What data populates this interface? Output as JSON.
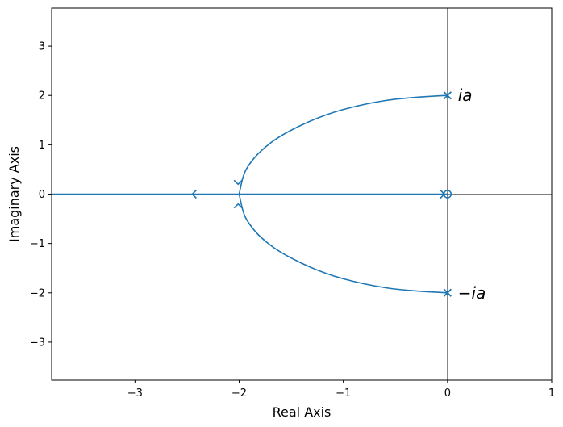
{
  "chart_data": {
    "type": "line",
    "title": "",
    "xlabel": "Real Axis",
    "ylabel": "Imaginary Axis",
    "xlim": [
      -3.8,
      1
    ],
    "ylim": [
      -3.77,
      3.77
    ],
    "x_ticks": [
      -3,
      -2,
      -1,
      0,
      1
    ],
    "x_tick_labels": [
      "−3",
      "−2",
      "−1",
      "0",
      "1"
    ],
    "y_ticks": [
      -3,
      -2,
      -1,
      0,
      1,
      2,
      3
    ],
    "y_tick_labels": [
      "−3",
      "−2",
      "−1",
      "0",
      "1",
      "2",
      "3"
    ],
    "grid": false,
    "line_color": "#1f77b4",
    "reference_lines": {
      "x": 0,
      "y": 0
    },
    "poles": [
      {
        "x": 0,
        "y": 2,
        "marker": "x"
      },
      {
        "x": 0,
        "y": -2,
        "marker": "x"
      }
    ],
    "zeros": [
      {
        "x": 0,
        "y": 0,
        "marker": "o"
      }
    ],
    "series": [
      {
        "points": [
          [
            0,
            2
          ],
          [
            -0.4,
            1.96
          ],
          [
            -0.8,
            1.83
          ],
          [
            -1.2,
            1.6
          ],
          [
            -1.6,
            1.2
          ],
          [
            -1.8,
            0.87
          ],
          [
            -1.9,
            0.62
          ],
          [
            -1.96,
            0.4
          ],
          [
            -2,
            0
          ]
        ]
      },
      {
        "points": [
          [
            0,
            -2
          ],
          [
            -0.4,
            -1.96
          ],
          [
            -0.8,
            -1.83
          ],
          [
            -1.2,
            -1.6
          ],
          [
            -1.6,
            -1.2
          ],
          [
            -1.8,
            -0.87
          ],
          [
            -1.9,
            -0.62
          ],
          [
            -1.96,
            -0.4
          ],
          [
            -2,
            0
          ]
        ]
      },
      {
        "points": [
          [
            -2,
            0
          ],
          [
            -3.8,
            0
          ]
        ]
      },
      {
        "points": [
          [
            -2,
            0
          ],
          [
            0,
            0
          ]
        ]
      }
    ],
    "arrows": [
      {
        "x": -2.45,
        "y": 0,
        "direction": "left"
      },
      {
        "x": -0.03,
        "y": 0,
        "direction": "right"
      },
      {
        "x": -2.01,
        "y": 0.2,
        "direction": "down"
      },
      {
        "x": -2.01,
        "y": -0.2,
        "direction": "up"
      }
    ],
    "annotations": [
      {
        "text": "ia",
        "x": 0.1,
        "y": 2
      },
      {
        "text": "−ia",
        "x": 0.1,
        "y": -2
      }
    ]
  }
}
